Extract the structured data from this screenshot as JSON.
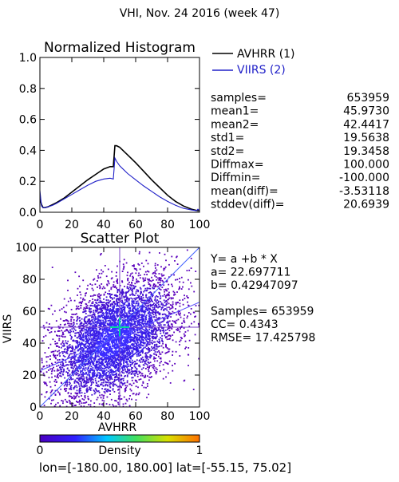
{
  "header": {
    "title": "VHI,  Nov. 24 2016 (week 47)"
  },
  "chart_data": [
    {
      "type": "line",
      "title": "Normalized Histogram",
      "xlim": [
        0,
        100
      ],
      "ylim": [
        0,
        1.0
      ],
      "x_ticks": [
        "0",
        "20",
        "40",
        "60",
        "80",
        "100"
      ],
      "y_ticks": [
        "0.0",
        "0.2",
        "0.4",
        "0.6",
        "0.8",
        "1.0"
      ],
      "series": [
        {
          "name": "AVHRR (1)",
          "color": "#000000",
          "x": [
            0,
            1,
            2,
            3,
            5,
            8,
            10,
            15,
            20,
            25,
            30,
            35,
            40,
            44,
            46,
            47,
            48,
            50,
            52,
            55,
            60,
            65,
            70,
            75,
            80,
            85,
            90,
            95,
            97,
            98,
            99,
            100
          ],
          "y": [
            0.09,
            0.05,
            0.03,
            0.03,
            0.035,
            0.05,
            0.06,
            0.09,
            0.13,
            0.17,
            0.21,
            0.245,
            0.28,
            0.295,
            0.295,
            0.43,
            0.43,
            0.42,
            0.4,
            0.37,
            0.32,
            0.265,
            0.21,
            0.16,
            0.11,
            0.07,
            0.04,
            0.02,
            0.015,
            0.012,
            0.01,
            0.01
          ]
        },
        {
          "name": "VIIRS (2)",
          "color": "#2020c8",
          "x": [
            0,
            1,
            2,
            3,
            5,
            8,
            10,
            15,
            20,
            25,
            30,
            35,
            40,
            44,
            46,
            47,
            48,
            50,
            52,
            55,
            60,
            65,
            70,
            75,
            80,
            85,
            90,
            95,
            97,
            98,
            99,
            100
          ],
          "y": [
            0.14,
            0.04,
            0.03,
            0.03,
            0.035,
            0.045,
            0.055,
            0.085,
            0.115,
            0.145,
            0.175,
            0.2,
            0.215,
            0.22,
            0.215,
            0.35,
            0.33,
            0.3,
            0.28,
            0.25,
            0.21,
            0.17,
            0.135,
            0.1,
            0.07,
            0.045,
            0.025,
            0.015,
            0.012,
            0.01,
            0.02,
            0.01
          ]
        }
      ],
      "stats": [
        {
          "label": "samples=",
          "value": "653959"
        },
        {
          "label": "mean1=",
          "value": "45.9730"
        },
        {
          "label": "mean2=",
          "value": "42.4417"
        },
        {
          "label": "std1=",
          "value": "19.5638"
        },
        {
          "label": "std2=",
          "value": "19.3458"
        },
        {
          "label": "Diffmax=",
          "value": "100.000"
        },
        {
          "label": "Diffmin=",
          "value": "-100.000"
        },
        {
          "label": "mean(diff)=",
          "value": "-3.53118"
        },
        {
          "label": "stddev(diff)=",
          "value": "20.6939"
        }
      ]
    },
    {
      "type": "scatter",
      "title": "Scatter Plot",
      "xlabel": "AVHRR",
      "ylabel": "VIIRS",
      "xlim": [
        0,
        100
      ],
      "ylim": [
        0,
        100
      ],
      "x_ticks": [
        "0",
        "20",
        "40",
        "60",
        "80",
        "100"
      ],
      "y_ticks": [
        "0",
        "20",
        "40",
        "60",
        "80",
        "100"
      ],
      "regression": {
        "a": 22.697711,
        "b": 0.42947097
      },
      "crosshair": {
        "x": 50,
        "y": 50
      },
      "stats_lines": [
        "Y= a +b * X",
        "a= 22.697711",
        "b= 0.42947097",
        "",
        "Samples= 653959",
        "CC=  0.4343",
        "RMSE= 17.425798"
      ],
      "colorbar": {
        "min_label": "0",
        "label": "Density",
        "max_label": "1"
      }
    }
  ],
  "footer": {
    "range_text": "lon=[-180.00, 180.00] lat=[-55.15, 75.02]"
  }
}
